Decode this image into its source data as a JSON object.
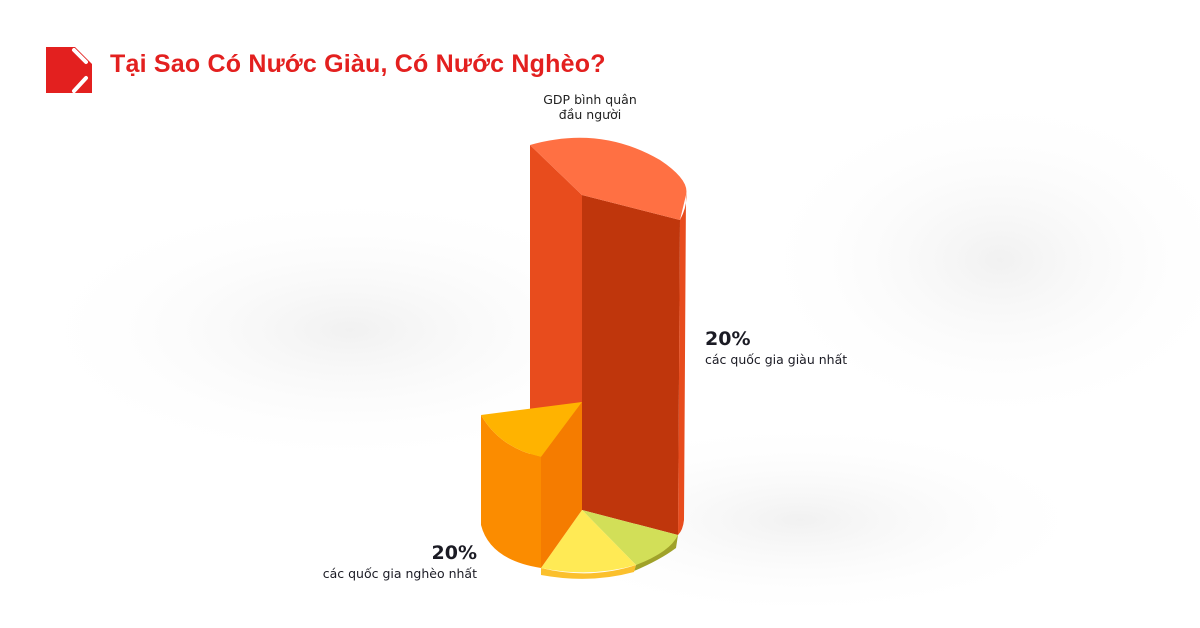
{
  "header": {
    "title": "Tại Sao Có Nước Giàu, Có Nước Nghèo?"
  },
  "chart_data": {
    "type": "pie",
    "title": "",
    "annotations": [
      "GDP bình quân đầu người"
    ],
    "labels": [
      {
        "value": "20%",
        "text": "các quốc gia giàu nhất"
      },
      {
        "value": "20%",
        "text": "các quốc gia nghèo nhất"
      }
    ],
    "slice_colors": [
      "#e84c1d",
      "#fb8c00",
      "#ffea55",
      "#d2df58"
    ]
  },
  "gdp_line1": "GDP bình quân",
  "gdp_line2": "đầu người"
}
